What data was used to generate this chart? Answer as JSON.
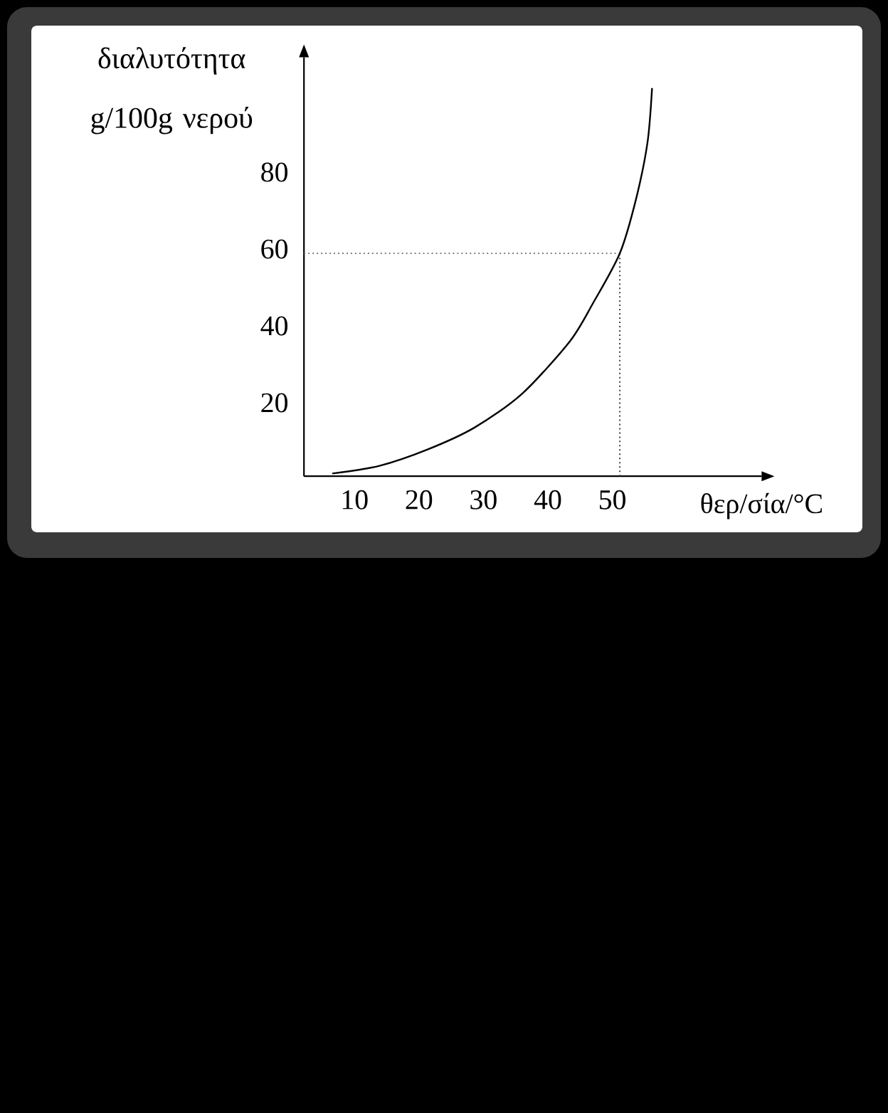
{
  "chart_data": {
    "type": "line",
    "xlabel": "θερ/σία/°C",
    "ylabel": "διαλυτότητα g/100g νερού",
    "x": [
      7.4,
      14.7,
      22.1,
      29.4,
      36.8,
      44.2,
      47.8,
      52,
      54.5,
      56.3,
      57
    ],
    "values": [
      2.7,
      4.7,
      8.9,
      14.6,
      23.4,
      37,
      46.9,
      60,
      74,
      88.9,
      103
    ],
    "color": "#000000",
    "xlim": [
      3,
      74
    ],
    "ylim": [
      2,
      111
    ],
    "xticks": [
      10,
      20,
      30,
      40,
      50
    ],
    "yticks": [
      20,
      40,
      60,
      80
    ],
    "ref_lines": [
      {
        "axis": "y",
        "value": 60,
        "color": "#808080",
        "line_style": "dotted"
      },
      {
        "axis": "x",
        "value": 52,
        "color": "#404040",
        "line_style": "dotted"
      }
    ]
  }
}
